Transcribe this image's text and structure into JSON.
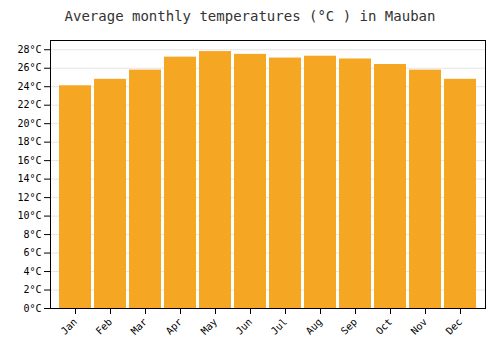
{
  "chart_data": {
    "type": "bar",
    "title": "Average monthly temperatures (°C ) in Mauban",
    "categories": [
      "Jan",
      "Feb",
      "Mar",
      "Apr",
      "May",
      "Jun",
      "Jul",
      "Aug",
      "Sep",
      "Oct",
      "Nov",
      "Dec"
    ],
    "values": [
      24.1,
      24.8,
      25.8,
      27.2,
      27.8,
      27.5,
      27.1,
      27.3,
      27.0,
      26.4,
      25.8,
      24.8
    ],
    "color": "#F5A623",
    "ylim": [
      0,
      29
    ],
    "yticks": [
      {
        "value": 0,
        "label": "0°C"
      },
      {
        "value": 2,
        "label": "2°C"
      },
      {
        "value": 4,
        "label": "4°C"
      },
      {
        "value": 6,
        "label": "6°C"
      },
      {
        "value": 8,
        "label": "8°C"
      },
      {
        "value": 10,
        "label": "10°C"
      },
      {
        "value": 12,
        "label": "12°C"
      },
      {
        "value": 14,
        "label": "14°C"
      },
      {
        "value": 16,
        "label": "16°C"
      },
      {
        "value": 18,
        "label": "18°C"
      },
      {
        "value": 20,
        "label": "20°C"
      },
      {
        "value": 22,
        "label": "22°C"
      },
      {
        "value": 24,
        "label": "24°C"
      },
      {
        "value": 26,
        "label": "26°C"
      },
      {
        "value": 28,
        "label": "28°C"
      }
    ],
    "grid": true
  }
}
